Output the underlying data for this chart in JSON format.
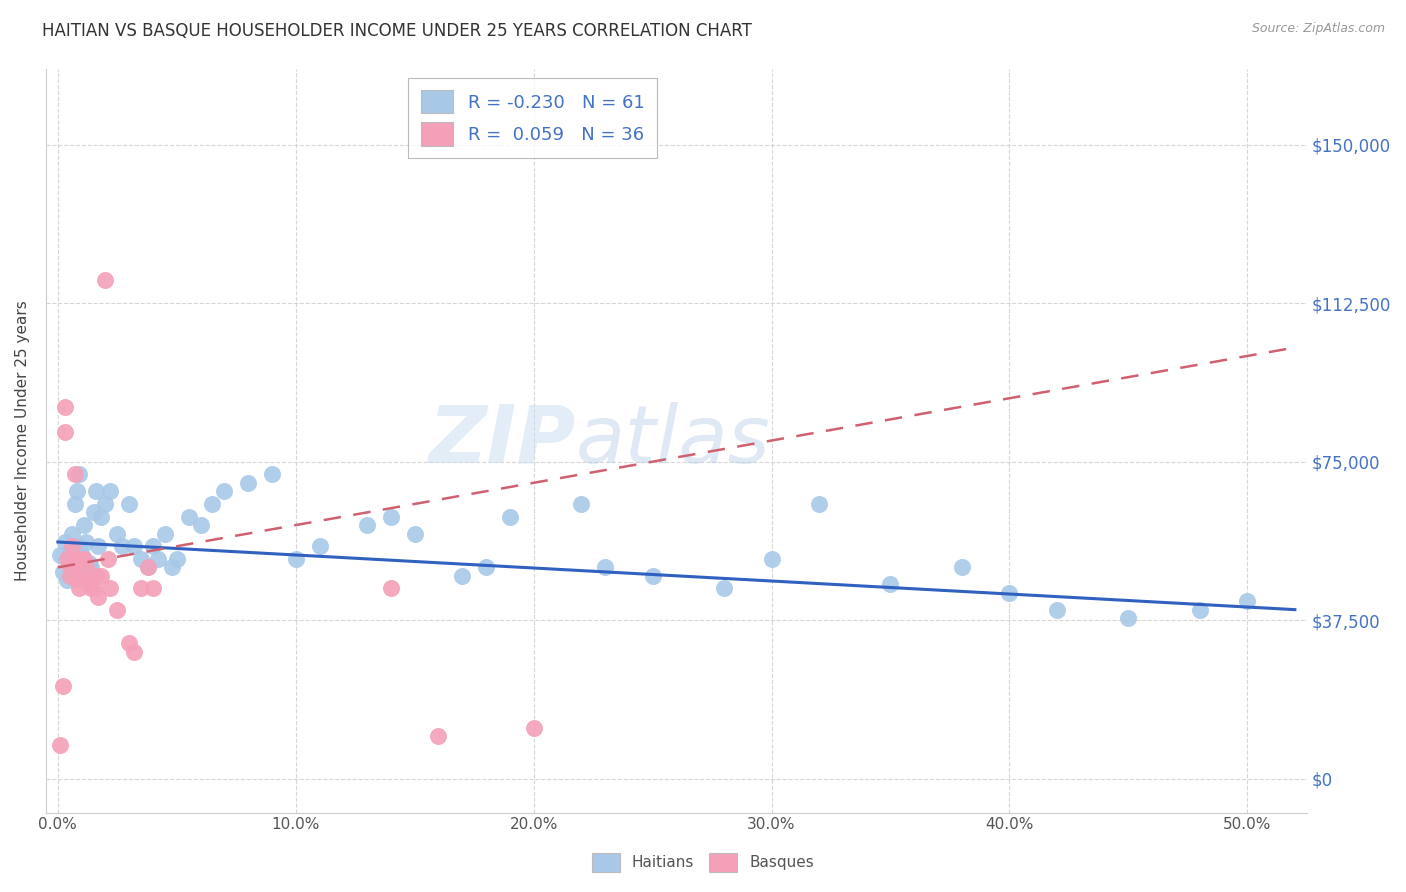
{
  "title": "HAITIAN VS BASQUE HOUSEHOLDER INCOME UNDER 25 YEARS CORRELATION CHART",
  "source": "Source: ZipAtlas.com",
  "ylabel_label": "Householder Income Under 25 years",
  "watermark_zip": "ZIP",
  "watermark_atlas": "atlas",
  "x_ticks": [
    0.0,
    0.1,
    0.2,
    0.3,
    0.4,
    0.5
  ],
  "x_tick_labels": [
    "0.0%",
    "10.0%",
    "20.0%",
    "30.0%",
    "40.0%",
    "50.0%"
  ],
  "y_ticks": [
    0,
    37500,
    75000,
    112500,
    150000
  ],
  "y_tick_labels": [
    "$0",
    "$37,500",
    "$75,000",
    "$112,500",
    "$150,000"
  ],
  "ylim": [
    -8000,
    168000
  ],
  "xlim": [
    -0.005,
    0.525
  ],
  "haitian_R": -0.23,
  "haitian_N": 61,
  "basque_R": 0.059,
  "basque_N": 36,
  "haitian_color": "#a8c8e8",
  "basque_color": "#f4a0b8",
  "haitian_line_color": "#3060c0",
  "basque_line_color": "#d06070",
  "haitian_x": [
    0.001,
    0.002,
    0.003,
    0.004,
    0.004,
    0.005,
    0.006,
    0.006,
    0.007,
    0.008,
    0.009,
    0.009,
    0.01,
    0.011,
    0.012,
    0.013,
    0.014,
    0.015,
    0.016,
    0.017,
    0.018,
    0.02,
    0.022,
    0.025,
    0.027,
    0.03,
    0.032,
    0.035,
    0.038,
    0.04,
    0.042,
    0.045,
    0.048,
    0.05,
    0.055,
    0.06,
    0.065,
    0.07,
    0.08,
    0.09,
    0.1,
    0.11,
    0.13,
    0.14,
    0.15,
    0.17,
    0.18,
    0.19,
    0.22,
    0.23,
    0.25,
    0.28,
    0.3,
    0.32,
    0.35,
    0.38,
    0.4,
    0.42,
    0.45,
    0.48,
    0.5
  ],
  "haitian_y": [
    53000,
    49000,
    56000,
    52000,
    47000,
    54000,
    58000,
    50000,
    65000,
    68000,
    72000,
    55000,
    53000,
    60000,
    56000,
    51000,
    50000,
    63000,
    68000,
    55000,
    62000,
    65000,
    68000,
    58000,
    55000,
    65000,
    55000,
    52000,
    50000,
    55000,
    52000,
    58000,
    50000,
    52000,
    62000,
    60000,
    65000,
    68000,
    70000,
    72000,
    52000,
    55000,
    60000,
    62000,
    58000,
    48000,
    50000,
    62000,
    65000,
    50000,
    48000,
    45000,
    52000,
    65000,
    46000,
    50000,
    44000,
    40000,
    38000,
    40000,
    42000
  ],
  "basque_x": [
    0.001,
    0.002,
    0.003,
    0.003,
    0.004,
    0.005,
    0.005,
    0.006,
    0.007,
    0.007,
    0.008,
    0.008,
    0.009,
    0.009,
    0.01,
    0.01,
    0.011,
    0.012,
    0.013,
    0.014,
    0.015,
    0.016,
    0.017,
    0.018,
    0.02,
    0.021,
    0.022,
    0.025,
    0.03,
    0.032,
    0.035,
    0.038,
    0.04,
    0.14,
    0.16,
    0.2
  ],
  "basque_y": [
    8000,
    22000,
    82000,
    88000,
    52000,
    50000,
    48000,
    55000,
    52000,
    72000,
    50000,
    47000,
    48000,
    45000,
    52000,
    48000,
    52000,
    50000,
    47000,
    45000,
    45000,
    48000,
    43000,
    48000,
    118000,
    52000,
    45000,
    40000,
    32000,
    30000,
    45000,
    50000,
    45000,
    45000,
    10000,
    12000
  ],
  "haitian_line_x0": 0.0,
  "haitian_line_y0": 56000,
  "haitian_line_x1": 0.52,
  "haitian_line_y1": 40000,
  "basque_line_x0": 0.0,
  "basque_line_y0": 50000,
  "basque_line_x1": 0.52,
  "basque_line_y1": 102000
}
